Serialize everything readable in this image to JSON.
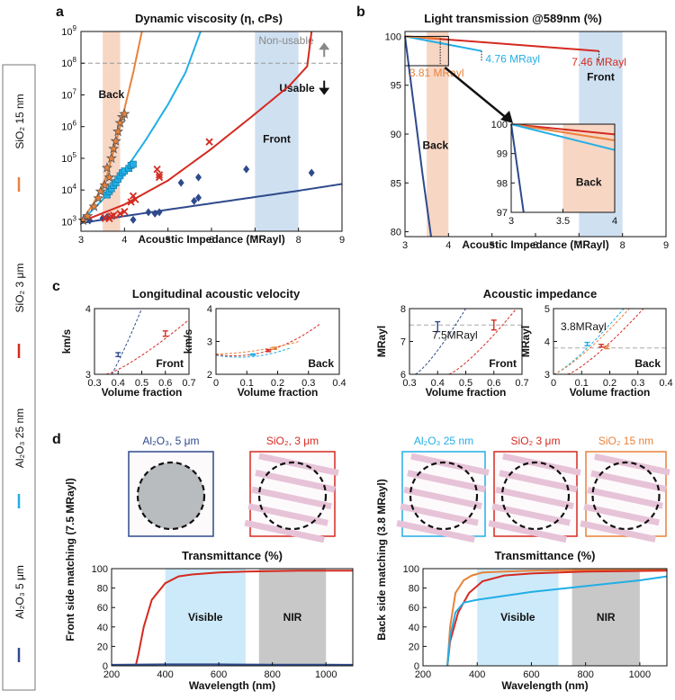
{
  "colors": {
    "al2o3_5um": "#2e4a8c",
    "sio2_3um": "#d42a20",
    "al2o3_25nm": "#22aee6",
    "sio2_15nm": "#e8823a",
    "front_band": "#cfe0f1",
    "back_band": "#f7d6c4",
    "visible_band": "#cdeafa",
    "nir_band": "#c8c8c8",
    "dash": "#aaaaaa"
  },
  "legend": {
    "items": [
      {
        "label": "Al₂O₃ 5 μm",
        "color": "#2e4a8c"
      },
      {
        "label": "Al₂O₃ 25 nm",
        "color": "#22aee6"
      },
      {
        "label": "SiO₂ 3 μm",
        "color": "#d42a20"
      },
      {
        "label": "SiO₂ 15 nm",
        "color": "#e8823a"
      }
    ]
  },
  "panel_letters": {
    "a": "a",
    "b": "b",
    "c": "c",
    "d": "d"
  },
  "chart_data": [
    {
      "id": "a",
      "type": "scatter",
      "title": "Dynamic viscosity (η, cPs)",
      "xlabel": "Acoustic Impedance (MRayl)",
      "xlim": [
        3,
        9
      ],
      "ylim_log10": [
        2.7,
        9
      ],
      "xticks": [
        3,
        4,
        5,
        6,
        7,
        8,
        9
      ],
      "yticks": [
        "10^3",
        "10^4",
        "10^5",
        "10^6",
        "10^7",
        "10^8",
        "10^9"
      ],
      "bands": [
        {
          "label": "Back",
          "x": [
            3.5,
            3.9
          ]
        },
        {
          "label": "Front",
          "x": [
            7.0,
            8.0
          ]
        }
      ],
      "threshold": {
        "y": "10^8",
        "label_above": "Non-usable",
        "label_below": "Usable"
      },
      "series": [
        {
          "name": "Al₂O₃ 5 μm",
          "marker": "diamond",
          "points": [
            [
              3.2,
              1100
            ],
            [
              3.5,
              1300
            ],
            [
              3.6,
              1400
            ],
            [
              4.2,
              1150
            ],
            [
              4.55,
              2000
            ],
            [
              4.7,
              1800
            ],
            [
              4.8,
              2000
            ],
            [
              5.6,
              4500
            ],
            [
              5.7,
              5700
            ],
            [
              5.3,
              17000
            ],
            [
              5.7,
              25000
            ],
            [
              6.8,
              45000
            ],
            [
              8.3,
              35000
            ]
          ],
          "curve": [
            [
              3,
              900
            ],
            [
              4,
              1500
            ],
            [
              5,
              2400
            ],
            [
              6,
              3800
            ],
            [
              7,
              6000
            ],
            [
              8,
              9500
            ],
            [
              9,
              15500
            ]
          ]
        },
        {
          "name": "SiO₂ 3 μm",
          "marker": "x",
          "points": [
            [
              3.55,
              1300
            ],
            [
              3.65,
              1250
            ],
            [
              3.75,
              1600
            ],
            [
              3.7,
              1500
            ],
            [
              3.9,
              1800
            ],
            [
              4.0,
              2100
            ],
            [
              4.2,
              6500
            ],
            [
              4.25,
              5000
            ],
            [
              4.15,
              4200
            ],
            [
              4.75,
              45000
            ],
            [
              4.8,
              30000
            ],
            [
              4.8,
              25000
            ],
            [
              5.95,
              330000
            ]
          ],
          "curve": [
            [
              3,
              1000
            ],
            [
              4,
              3500
            ],
            [
              5,
              20000
            ],
            [
              6,
              200000
            ],
            [
              7,
              2500000
            ],
            [
              7.8,
              20000000
            ],
            [
              8.2,
              80000000
            ],
            [
              8.3,
              1000000000
            ]
          ]
        },
        {
          "name": "Al₂O₃ 25 nm",
          "marker": "square",
          "points": [
            [
              3.6,
              7000
            ],
            [
              3.65,
              9000
            ],
            [
              3.7,
              11000
            ],
            [
              3.75,
              14000
            ],
            [
              3.8,
              17000
            ],
            [
              3.85,
              22000
            ],
            [
              3.9,
              28000
            ],
            [
              3.95,
              35000
            ],
            [
              4.0,
              40000
            ],
            [
              4.1,
              48000
            ],
            [
              4.15,
              60000
            ],
            [
              4.2,
              65000
            ]
          ],
          "curve": [
            [
              3,
              1000
            ],
            [
              3.5,
              5000
            ],
            [
              4,
              40000
            ],
            [
              4.5,
              400000
            ],
            [
              5,
              5000000
            ],
            [
              5.4,
              50000000
            ],
            [
              5.75,
              1000000000
            ]
          ]
        },
        {
          "name": "SiO₂ 15 nm",
          "marker": "star",
          "points": [
            [
              3.05,
              1100
            ],
            [
              3.15,
              1500
            ],
            [
              3.3,
              3000
            ],
            [
              3.4,
              5500
            ],
            [
              3.45,
              9000
            ],
            [
              3.55,
              14000
            ],
            [
              3.65,
              25000
            ],
            [
              3.6,
              50000
            ],
            [
              3.7,
              100000
            ],
            [
              3.75,
              200000
            ],
            [
              3.8,
              350000
            ],
            [
              3.85,
              700000
            ],
            [
              3.9,
              1300000
            ],
            [
              3.95,
              2000000
            ],
            [
              4.0,
              2500000
            ]
          ],
          "curve": [
            [
              3,
              1000
            ],
            [
              3.3,
              4000
            ],
            [
              3.6,
              30000
            ],
            [
              3.9,
              1000000
            ],
            [
              4.2,
              50000000
            ],
            [
              4.4,
              1000000000
            ]
          ]
        }
      ]
    },
    {
      "id": "b",
      "type": "line",
      "title": "Light transmission @589nm  (%)",
      "xlabel": "Acoustic Impedance (MRayl)",
      "xlim": [
        3,
        9
      ],
      "ylim": [
        79.5,
        100.5
      ],
      "xticks": [
        3,
        4,
        5,
        6,
        7,
        8,
        9
      ],
      "yticks": [
        80,
        85,
        90,
        95,
        100
      ],
      "bands": [
        {
          "label": "Back",
          "x": [
            3.5,
            4.0
          ]
        },
        {
          "label": "Front",
          "x": [
            7.0,
            8.0
          ]
        }
      ],
      "series": [
        {
          "name": "SiO₂ 3 μm",
          "x": [
            3,
            7.46
          ],
          "y": [
            100,
            98.5
          ],
          "end_label": "7.46 MRayl"
        },
        {
          "name": "Al₂O₃ 25 nm",
          "x": [
            3,
            4.76
          ],
          "y": [
            100,
            98.5
          ],
          "end_label": "4.76 MRayl"
        },
        {
          "name": "SiO₂ 15 nm",
          "x": [
            3,
            3.81
          ],
          "y": [
            100,
            99.8
          ],
          "end_label": "3.81 MRayl"
        },
        {
          "name": "Al₂O₃ 5 μm",
          "x": [
            3,
            3.2,
            3.4,
            3.6
          ],
          "y": [
            100,
            93,
            86,
            79.5
          ]
        }
      ],
      "inset": {
        "xlim": [
          3,
          4
        ],
        "ylim": [
          97,
          100
        ],
        "xticks": [
          3,
          3.5,
          4
        ],
        "yticks": [
          97,
          98,
          99,
          100
        ],
        "band": {
          "label": "Back",
          "x": [
            3.5,
            4.0
          ]
        },
        "series": [
          {
            "name": "SiO₂ 3 μm",
            "x": [
              3,
              4
            ],
            "y": [
              100,
              99.65
            ]
          },
          {
            "name": "SiO₂ 15 nm",
            "x": [
              3,
              4
            ],
            "y": [
              100,
              99.45
            ]
          },
          {
            "name": "Al₂O₃ 25 nm",
            "x": [
              3,
              4
            ],
            "y": [
              100,
              99.12
            ]
          },
          {
            "name": "Al₂O₃ 5 μm",
            "x": [
              3,
              3.12
            ],
            "y": [
              100,
              97
            ]
          }
        ]
      }
    },
    {
      "id": "c1",
      "type": "line",
      "title": "Longitudinal acoustic velocity",
      "ylabel": "km/s",
      "xlabel": "Volume fraction",
      "xlim": [
        0.3,
        0.7
      ],
      "ylim": [
        3,
        4
      ],
      "xticks": [
        0.3,
        0.4,
        0.5,
        0.6,
        0.7
      ],
      "yticks": [
        3,
        4
      ],
      "label": "Front",
      "curves": [
        {
          "name": "Al₂O₃ 5 μm",
          "x": [
            0.3,
            0.5
          ],
          "y": [
            2.6,
            4.0
          ]
        },
        {
          "name": "SiO₂ 3 μm",
          "x": [
            0.35,
            0.7
          ],
          "y": [
            3.0,
            3.83
          ]
        }
      ],
      "points": [
        {
          "name": "Al₂O₃ 5 μm",
          "x": 0.4,
          "y": 3.3,
          "err": 0.03
        },
        {
          "name": "SiO₂ 3 μm",
          "x": 0.6,
          "y": 3.62,
          "err": 0.04
        }
      ]
    },
    {
      "id": "c2",
      "type": "line",
      "ylabel": "km/s",
      "xlabel": "Volume fraction",
      "xlim": [
        0,
        0.4
      ],
      "ylim": [
        2,
        4
      ],
      "xticks": [
        0,
        0.1,
        0.2,
        0.3,
        0.4
      ],
      "yticks": [
        2,
        3,
        4
      ],
      "label": "Back",
      "curves": [
        {
          "name": "Al₂O₃ 25 nm",
          "x": [
            0,
            0.12,
            0.24
          ],
          "y": [
            2.58,
            2.54,
            2.8
          ]
        },
        {
          "name": "SiO₂ 3 μm",
          "x": [
            0,
            0.17,
            0.34
          ],
          "y": [
            2.6,
            2.72,
            3.55
          ]
        },
        {
          "name": "SiO₂ 15 nm",
          "x": [
            0,
            0.12,
            0.27
          ],
          "y": [
            2.62,
            2.72,
            3.0
          ]
        }
      ],
      "points": [
        {
          "name": "Al₂O₃ 25 nm",
          "x": 0.12,
          "y": 2.6,
          "err": 0.02
        },
        {
          "name": "SiO₂ 3 μm",
          "x": 0.17,
          "y": 2.72,
          "err": 0.03
        },
        {
          "name": "SiO₂ 15 nm",
          "x": 0.19,
          "y": 2.79,
          "err": 0.03
        }
      ]
    },
    {
      "id": "c3",
      "type": "line",
      "title": "Acoustic impedance",
      "ylabel": "MRayl",
      "xlabel": "Volume fraction",
      "xlim": [
        0.3,
        0.7
      ],
      "ylim": [
        6,
        8
      ],
      "xticks": [
        0.3,
        0.4,
        0.5,
        0.6,
        0.7
      ],
      "yticks": [
        6,
        7,
        8
      ],
      "label": "Front",
      "ref": {
        "y": 7.5,
        "label": "7.5MRayl"
      },
      "curves": [
        {
          "name": "Al₂O₃ 5 μm",
          "x": [
            0.32,
            0.5
          ],
          "y": [
            6.0,
            8.0
          ]
        },
        {
          "name": "SiO₂ 3 μm",
          "x": [
            0.44,
            0.68
          ],
          "y": [
            6.0,
            8.0
          ]
        }
      ],
      "points": [
        {
          "name": "Al₂O₃ 5 μm",
          "x": 0.4,
          "y": 7.45,
          "err": 0.15
        },
        {
          "name": "SiO₂ 3 μm",
          "x": 0.6,
          "y": 7.5,
          "err": 0.15
        }
      ]
    },
    {
      "id": "c4",
      "type": "line",
      "ylabel": "MRayl",
      "xlabel": "Volume fraction",
      "xlim": [
        0,
        0.4
      ],
      "ylim": [
        3,
        5
      ],
      "xticks": [
        0,
        0.1,
        0.2,
        0.3,
        0.4
      ],
      "yticks": [
        3,
        4,
        5
      ],
      "label": "Back",
      "ref": {
        "y": 3.8,
        "label": "3.8MRayl"
      },
      "curves": [
        {
          "name": "Al₂O₃ 25 nm",
          "x": [
            0,
            0.25
          ],
          "y": [
            3.0,
            5.0
          ]
        },
        {
          "name": "SiO₂ 3 μm",
          "x": [
            0.05,
            0.32
          ],
          "y": [
            3.0,
            5.0
          ]
        },
        {
          "name": "SiO₂ 15 nm",
          "x": [
            0,
            0.27
          ],
          "y": [
            3.0,
            5.0
          ]
        }
      ],
      "points": [
        {
          "name": "Al₂O₃ 25 nm",
          "x": 0.12,
          "y": 3.92,
          "err": 0.05
        },
        {
          "name": "SiO₂ 3 μm",
          "x": 0.17,
          "y": 3.87,
          "err": 0.04
        },
        {
          "name": "SiO₂ 15 nm",
          "x": 0.19,
          "y": 3.82,
          "err": 0.04
        }
      ]
    },
    {
      "id": "d1",
      "type": "line",
      "title": "Transmittance (%)",
      "ylabel": "Front side matching (7.5 MRayl)",
      "xlabel": "Wavelength (nm)",
      "xlim": [
        200,
        1100
      ],
      "ylim": [
        0,
        100
      ],
      "xticks": [
        200,
        400,
        600,
        800,
        1000
      ],
      "yticks": [
        0,
        20,
        40,
        60,
        80,
        100
      ],
      "bands": [
        {
          "label": "Visible",
          "x": [
            400,
            700
          ]
        },
        {
          "label": "NIR",
          "x": [
            750,
            1000
          ]
        }
      ],
      "series": [
        {
          "name": "SiO₂ 3 μm",
          "x": [
            290,
            300,
            320,
            350,
            400,
            450,
            500,
            600,
            700,
            800,
            900,
            1000,
            1100
          ],
          "y": [
            0,
            12,
            40,
            68,
            85,
            92,
            94,
            96,
            97,
            97.5,
            98,
            98,
            98
          ]
        },
        {
          "name": "Al₂O₃ 5 μm",
          "x": [
            200,
            400,
            600,
            800,
            1000,
            1100
          ],
          "y": [
            1,
            1.5,
            1.5,
            1.2,
            1.2,
            1
          ]
        }
      ],
      "photos": [
        {
          "title": "Al₂O₃, 5 μm",
          "frame": "#2e4a8c",
          "opaque": true
        },
        {
          "title": "SiO₂, 3 μm",
          "frame": "#d42a20",
          "opaque": false
        }
      ]
    },
    {
      "id": "d2",
      "type": "line",
      "title": "Transmittance (%)",
      "ylabel": "Back side matching (3.8 MRayl)",
      "xlabel": "Wavelength (nm)",
      "xlim": [
        200,
        1100
      ],
      "ylim": [
        0,
        100
      ],
      "xticks": [
        200,
        400,
        600,
        800,
        1000
      ],
      "yticks": [
        0,
        20,
        40,
        60,
        80,
        100
      ],
      "bands": [
        {
          "label": "Visible",
          "x": [
            400,
            700
          ]
        },
        {
          "label": "NIR",
          "x": [
            750,
            1000
          ]
        }
      ],
      "series": [
        {
          "name": "SiO₂ 15 nm",
          "x": [
            290,
            300,
            320,
            350,
            380,
            420,
            500,
            600,
            800,
            1100
          ],
          "y": [
            0,
            40,
            75,
            88,
            93,
            96,
            97,
            98,
            98.5,
            99
          ]
        },
        {
          "name": "SiO₂ 3 μm",
          "x": [
            290,
            300,
            330,
            370,
            420,
            500,
            600,
            800,
            1100
          ],
          "y": [
            0,
            25,
            55,
            75,
            87,
            93,
            95,
            97,
            98
          ]
        },
        {
          "name": "Al₂O₃ 25 nm",
          "x": [
            290,
            300,
            320,
            350,
            400,
            500,
            600,
            800,
            1000,
            1100
          ],
          "y": [
            0,
            30,
            55,
            65,
            68,
            72,
            76,
            82,
            88,
            92
          ]
        }
      ],
      "photos": [
        {
          "title": "Al₂O₃ 25 nm",
          "frame": "#22aee6",
          "opaque": false
        },
        {
          "title": "SiO₂ 3 μm",
          "frame": "#d42a20",
          "opaque": false
        },
        {
          "title": "SiO₂ 15 nm",
          "frame": "#e8823a",
          "opaque": false
        }
      ]
    }
  ]
}
